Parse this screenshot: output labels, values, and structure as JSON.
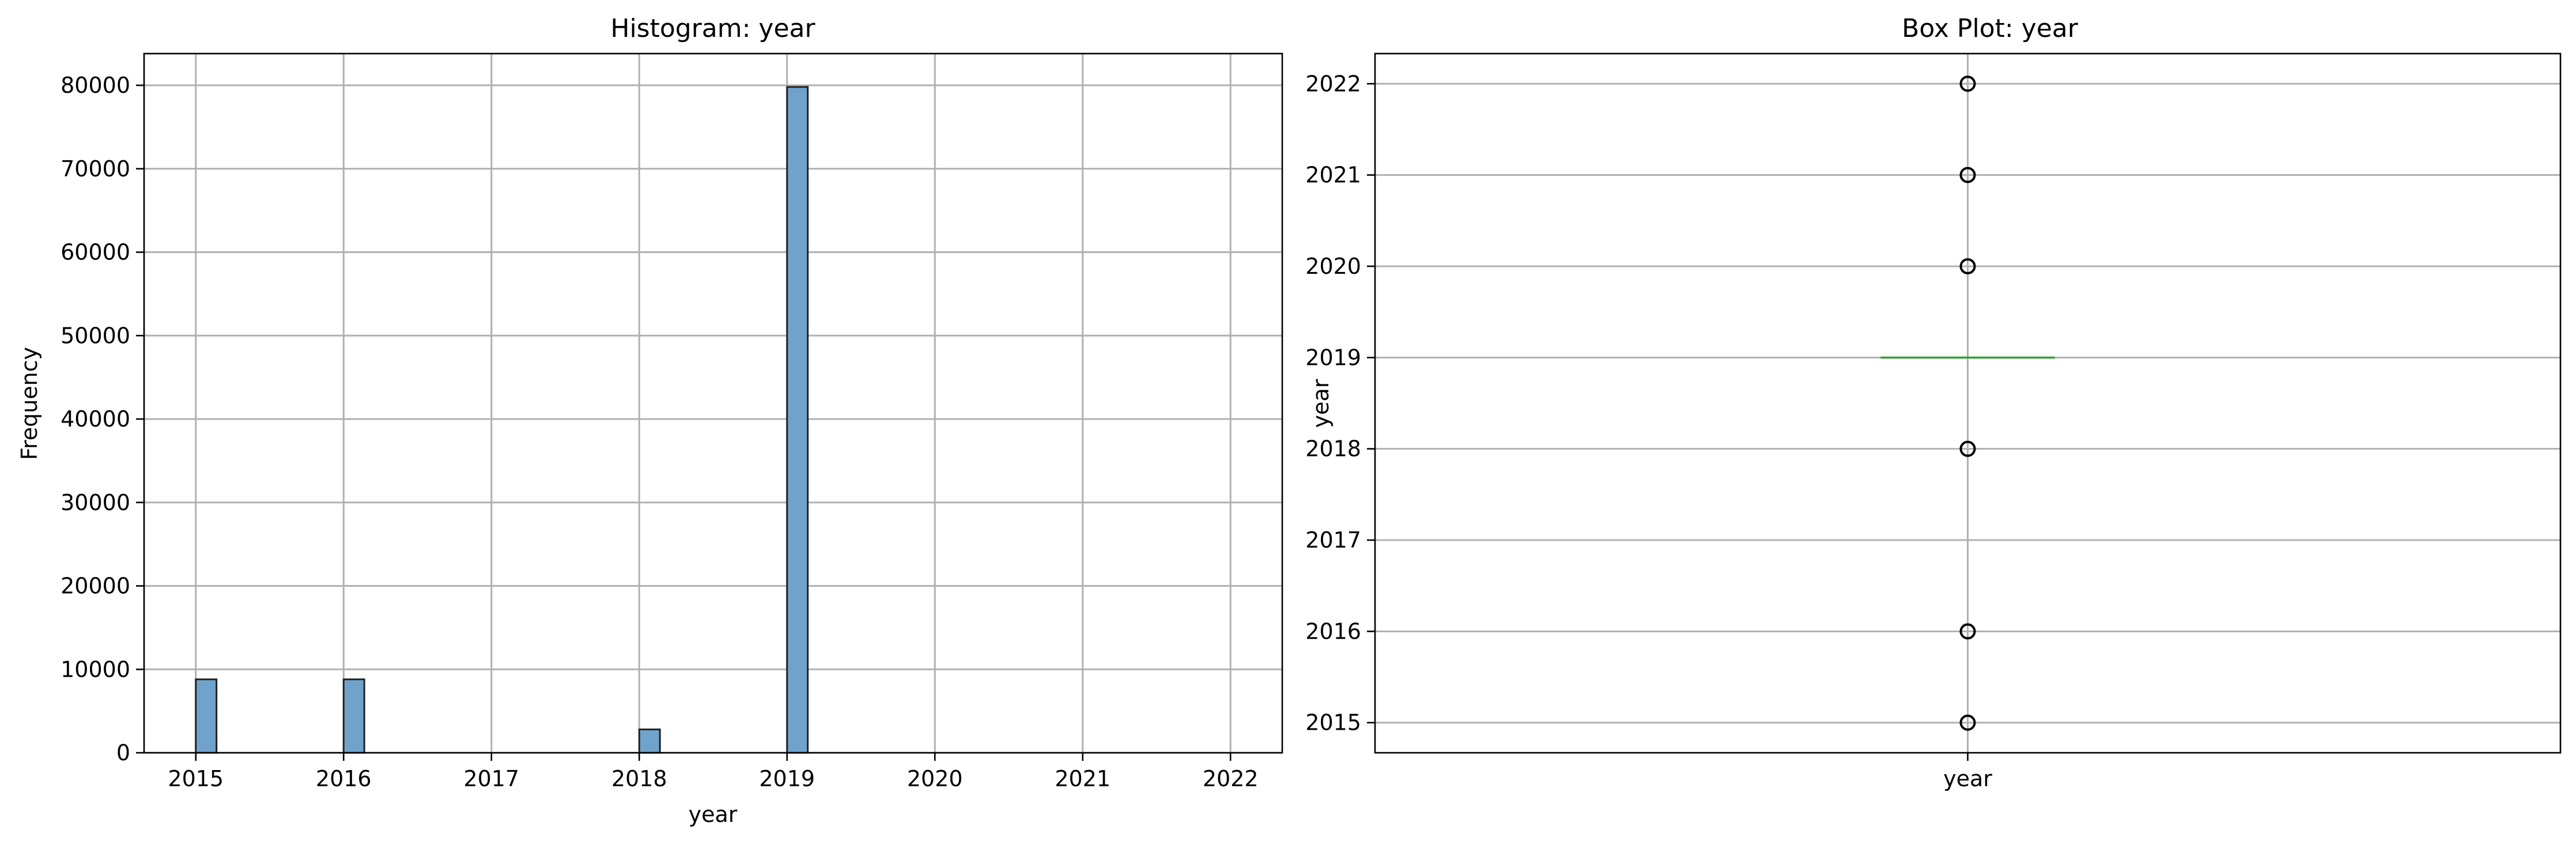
{
  "chart_data": [
    {
      "type": "histogram",
      "title": "Histogram: year",
      "xlabel": "year",
      "ylabel": "Frequency",
      "xlim": [
        2014.65,
        2022.35
      ],
      "ylim": [
        0,
        83800
      ],
      "x_ticks": [
        2015,
        2016,
        2017,
        2018,
        2019,
        2020,
        2021,
        2022
      ],
      "y_ticks": [
        0,
        10000,
        20000,
        30000,
        40000,
        50000,
        60000,
        70000,
        80000
      ],
      "bin_width": 0.14,
      "bars": [
        {
          "x": 2015,
          "count": 8800
        },
        {
          "x": 2016,
          "count": 8800
        },
        {
          "x": 2018,
          "count": 2800
        },
        {
          "x": 2019,
          "count": 79800
        }
      ],
      "bar_color": "#6fa3cc",
      "edge_color": "#222222",
      "grid": true
    },
    {
      "type": "box",
      "title": "Box Plot: year",
      "xlabel": "year",
      "ylabel": "year",
      "ylim": [
        2014.67,
        2022.33
      ],
      "y_ticks": [
        2015,
        2016,
        2017,
        2018,
        2019,
        2020,
        2021,
        2022
      ],
      "category": "year",
      "median": 2019,
      "q1": 2019,
      "q3": 2019,
      "whisker_low": 2019,
      "whisker_high": 2019,
      "fliers": [
        2015,
        2016,
        2018,
        2020,
        2021,
        2022
      ],
      "median_color": "#2ca02c",
      "grid": true
    }
  ]
}
